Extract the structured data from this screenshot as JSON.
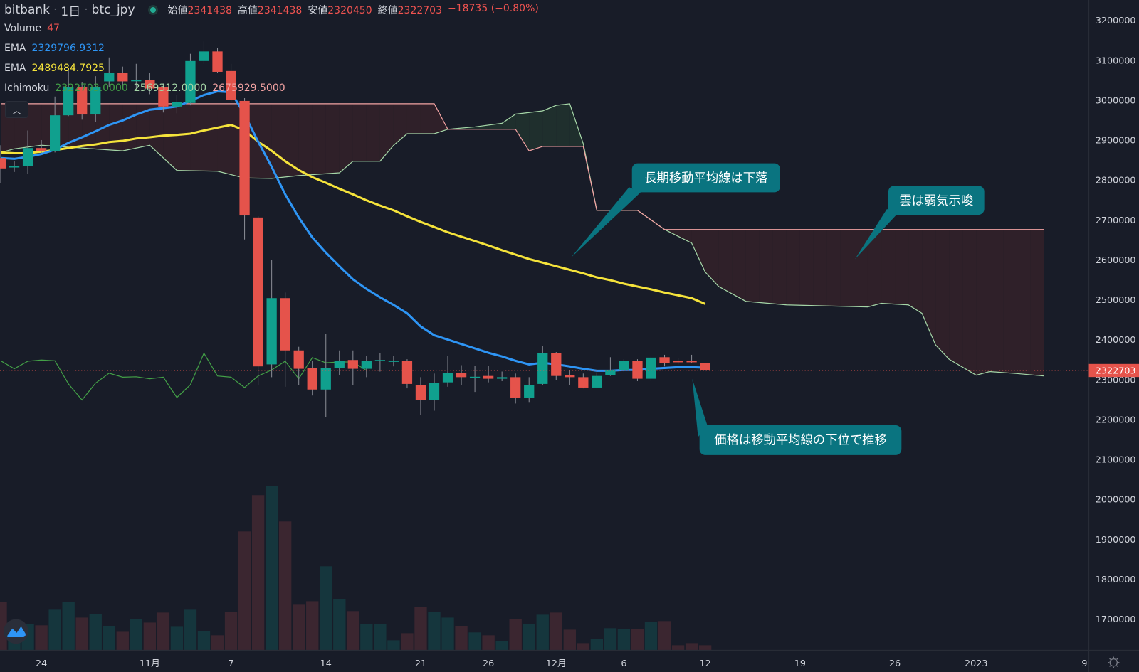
{
  "header": {
    "exchange": "bitbank",
    "interval": "1日",
    "symbol": "btc_jpy",
    "open_label": "始値",
    "open": "2341438",
    "high_label": "高値",
    "high": "2341438",
    "low_label": "安値",
    "low": "2320450",
    "close_label": "終値",
    "close": "2322703",
    "change": "−18735 (−0.80%)"
  },
  "legend": {
    "volume_label": "Volume",
    "volume_value": "47",
    "ema_short_label": "EMA",
    "ema_short_value": "2329796.9312",
    "ema_long_label": "EMA",
    "ema_long_value": "2489484.7925",
    "ichimoku_label": "Ichimoku",
    "ichimoku_lagging": "2322703.0000",
    "ichimoku_span_a": "2569312.0000",
    "ichimoku_span_b": "2675929.5000"
  },
  "collapse_icon": "chevron-up-icon",
  "annotations": [
    {
      "text": "長期移動平均線は下落"
    },
    {
      "text": "雲は弱気示唆"
    },
    {
      "text": "価格は移動平均線の下位で推移"
    }
  ],
  "colors": {
    "background": "#181c28",
    "up": "#10a08e",
    "down": "#e5534b",
    "volume_up": "#15363d",
    "volume_down": "#3b2630",
    "ema_short": "#2e95f5",
    "ema_long": "#f5e33b",
    "span_a": "#a5d6a7",
    "span_b": "#f4a3a3",
    "lagging": "#43a047",
    "cloud_bear": "#2f2029",
    "cloud_bull": "#1f2f2d",
    "callout": "#0a7480"
  },
  "chart_data": {
    "type": "candlestick",
    "title": "",
    "ylim": [
      1650000,
      3230000
    ],
    "y_scale": "linear",
    "grid": false,
    "price_ticks": [
      "3200000",
      "3100000",
      "3000000",
      "2900000",
      "2800000",
      "2700000",
      "2600000",
      "2500000",
      "2400000",
      "2300000",
      "2200000",
      "2100000",
      "2000000",
      "1900000",
      "1800000",
      "1700000"
    ],
    "last_price": "2322703",
    "date_ticks": [
      {
        "label": "24",
        "date": "2022-10-24"
      },
      {
        "label": "11月",
        "date": "2022-11-01"
      },
      {
        "label": "7",
        "date": "2022-11-07"
      },
      {
        "label": "14",
        "date": "2022-11-14"
      },
      {
        "label": "21",
        "date": "2022-11-21"
      },
      {
        "label": "26",
        "date": "2022-11-26"
      },
      {
        "label": "12月",
        "date": "2022-12-01"
      },
      {
        "label": "6",
        "date": "2022-12-06"
      },
      {
        "label": "12",
        "date": "2022-12-12"
      },
      {
        "label": "19",
        "date": "2022-12-19"
      },
      {
        "label": "26",
        "date": "2022-12-26"
      },
      {
        "label": "2023",
        "date": "2023-01-01"
      },
      {
        "label": "9",
        "date": "2023-01-09"
      }
    ],
    "candle_columns": [
      "date",
      "open",
      "high",
      "low",
      "close",
      "volume"
    ],
    "candles": [
      [
        "2022-10-21",
        2855000,
        2887000,
        2793000,
        2829000,
        456
      ],
      [
        "2022-10-22",
        2833000,
        2847000,
        2820000,
        2834000,
        268
      ],
      [
        "2022-10-23",
        2835000,
        2924000,
        2816000,
        2880000,
        248
      ],
      [
        "2022-10-24",
        2880000,
        2900000,
        2869000,
        2873000,
        235
      ],
      [
        "2022-10-25",
        2873000,
        3009000,
        2869000,
        2962000,
        382
      ],
      [
        "2022-10-26",
        2962000,
        3078000,
        2960000,
        3033000,
        456
      ],
      [
        "2022-10-27",
        3033000,
        3045000,
        2951000,
        2964000,
        308
      ],
      [
        "2022-10-28",
        2964000,
        3060000,
        2945000,
        3033000,
        342
      ],
      [
        "2022-10-29",
        3047000,
        3107000,
        3033000,
        3069000,
        228
      ],
      [
        "2022-10-30",
        3069000,
        3084000,
        3036000,
        3047000,
        174
      ],
      [
        "2022-10-31",
        3049000,
        3091000,
        3029000,
        3050000,
        295
      ],
      [
        "2022-11-01",
        3051000,
        3069000,
        3015000,
        3029000,
        261
      ],
      [
        "2022-11-02",
        3033000,
        3042000,
        2969000,
        2984000,
        355
      ],
      [
        "2022-11-03",
        2984000,
        3013000,
        2967000,
        2995000,
        221
      ],
      [
        "2022-11-04",
        2993000,
        3116000,
        2987000,
        3098000,
        382
      ],
      [
        "2022-11-05",
        3098000,
        3147000,
        3091000,
        3122000,
        181
      ],
      [
        "2022-11-06",
        3122000,
        3131000,
        3069000,
        3071000,
        141
      ],
      [
        "2022-11-07",
        3073000,
        3091000,
        2996000,
        3000000,
        362
      ],
      [
        "2022-11-08",
        2998000,
        3005000,
        2651000,
        2711000,
        1119
      ],
      [
        "2022-11-09",
        2706000,
        2709000,
        2287000,
        2333000,
        1461
      ],
      [
        "2022-11-10",
        2338000,
        2600000,
        2306000,
        2504000,
        1548
      ],
      [
        "2022-11-11",
        2504000,
        2518000,
        2282000,
        2373000,
        1213
      ],
      [
        "2022-11-12",
        2373000,
        2382000,
        2287000,
        2327000,
        429
      ],
      [
        "2022-11-13",
        2329000,
        2346000,
        2260000,
        2275000,
        462
      ],
      [
        "2022-11-14",
        2275000,
        2415000,
        2206000,
        2329000,
        791
      ],
      [
        "2022-11-15",
        2329000,
        2373000,
        2311000,
        2347000,
        482
      ],
      [
        "2022-11-16",
        2349000,
        2373000,
        2287000,
        2327000,
        369
      ],
      [
        "2022-11-17",
        2327000,
        2360000,
        2306000,
        2346000,
        248
      ],
      [
        "2022-11-18",
        2347000,
        2366000,
        2320000,
        2349000,
        248
      ],
      [
        "2022-11-19",
        2347000,
        2360000,
        2333000,
        2347000,
        94
      ],
      [
        "2022-11-20",
        2347000,
        2351000,
        2278000,
        2289000,
        161
      ],
      [
        "2022-11-21",
        2286000,
        2306000,
        2211000,
        2249000,
        409
      ],
      [
        "2022-11-22",
        2249000,
        2315000,
        2222000,
        2291000,
        362
      ],
      [
        "2022-11-23",
        2293000,
        2360000,
        2282000,
        2316000,
        308
      ],
      [
        "2022-11-24",
        2316000,
        2336000,
        2287000,
        2306000,
        228
      ],
      [
        "2022-11-25",
        2307000,
        2335000,
        2269000,
        2307000,
        168
      ],
      [
        "2022-11-26",
        2309000,
        2335000,
        2293000,
        2302000,
        141
      ],
      [
        "2022-11-27",
        2302000,
        2320000,
        2296000,
        2306000,
        87
      ],
      [
        "2022-11-28",
        2306000,
        2315000,
        2240000,
        2255000,
        295
      ],
      [
        "2022-11-29",
        2255000,
        2306000,
        2242000,
        2287000,
        248
      ],
      [
        "2022-11-30",
        2289000,
        2384000,
        2286000,
        2366000,
        335
      ],
      [
        "2022-12-01",
        2366000,
        2369000,
        2298000,
        2309000,
        355
      ],
      [
        "2022-12-02",
        2311000,
        2324000,
        2287000,
        2306000,
        194
      ],
      [
        "2022-12-03",
        2306000,
        2315000,
        2278000,
        2280000,
        67
      ],
      [
        "2022-12-04",
        2280000,
        2318000,
        2278000,
        2309000,
        107
      ],
      [
        "2022-12-05",
        2311000,
        2356000,
        2309000,
        2324000,
        208
      ],
      [
        "2022-12-06",
        2324000,
        2351000,
        2320000,
        2346000,
        201
      ],
      [
        "2022-12-07",
        2346000,
        2351000,
        2296000,
        2302000,
        201
      ],
      [
        "2022-12-08",
        2302000,
        2360000,
        2296000,
        2355000,
        268
      ],
      [
        "2022-12-09",
        2356000,
        2362000,
        2333000,
        2342000,
        275
      ],
      [
        "2022-12-10",
        2346000,
        2353000,
        2338000,
        2344000,
        47
      ],
      [
        "2022-12-11",
        2346000,
        2362000,
        2342000,
        2344000,
        67
      ],
      [
        "2022-12-12",
        2341438,
        2341438,
        2320450,
        2322703,
        47
      ]
    ],
    "ema_short": [
      2855000,
      2853000,
      2858000,
      2865000,
      2876000,
      2893000,
      2907000,
      2922000,
      2938000,
      2949000,
      2964000,
      2976000,
      2980000,
      2984000,
      2998000,
      3013000,
      3022000,
      3020000,
      2964000,
      2896000,
      2833000,
      2764000,
      2706000,
      2656000,
      2618000,
      2584000,
      2551000,
      2527000,
      2506000,
      2487000,
      2466000,
      2433000,
      2411000,
      2400000,
      2389000,
      2378000,
      2367000,
      2358000,
      2347000,
      2338000,
      2342000,
      2338000,
      2333000,
      2327000,
      2322000,
      2322000,
      2324000,
      2324000,
      2327000,
      2329000,
      2331000,
      2331000,
      2329797
    ],
    "ema_long": [
      2869000,
      2867000,
      2867000,
      2871000,
      2875000,
      2880000,
      2885000,
      2889000,
      2895000,
      2898000,
      2904000,
      2907000,
      2911000,
      2913000,
      2916000,
      2924000,
      2931000,
      2938000,
      2924000,
      2896000,
      2873000,
      2847000,
      2825000,
      2807000,
      2793000,
      2778000,
      2764000,
      2749000,
      2736000,
      2724000,
      2709000,
      2695000,
      2682000,
      2669000,
      2658000,
      2647000,
      2636000,
      2624000,
      2613000,
      2602000,
      2593000,
      2584000,
      2575000,
      2566000,
      2556000,
      2549000,
      2540000,
      2533000,
      2526000,
      2518000,
      2511000,
      2504000,
      2489485
    ],
    "ichimoku_span_a": [
      [
        "2022-10-21",
        2869000
      ],
      [
        "2022-10-22",
        2878000
      ],
      [
        "2022-10-24",
        2887000
      ],
      [
        "2022-10-30",
        2873000
      ],
      [
        "2022-11-01",
        2887000
      ],
      [
        "2022-11-03",
        2824000
      ],
      [
        "2022-11-06",
        2822000
      ],
      [
        "2022-11-08",
        2805000
      ],
      [
        "2022-11-10",
        2804000
      ],
      [
        "2022-11-12",
        2811000
      ],
      [
        "2022-11-15",
        2818000
      ],
      [
        "2022-11-16",
        2847000
      ],
      [
        "2022-11-18",
        2847000
      ],
      [
        "2022-11-19",
        2887000
      ],
      [
        "2022-11-20",
        2916000
      ],
      [
        "2022-11-22",
        2916000
      ],
      [
        "2022-11-23",
        2927000
      ],
      [
        "2022-11-25",
        2933000
      ],
      [
        "2022-11-27",
        2942000
      ],
      [
        "2022-11-28",
        2965000
      ],
      [
        "2022-11-30",
        2973000
      ],
      [
        "2022-12-01",
        2987000
      ],
      [
        "2022-12-02",
        2991000
      ],
      [
        "2022-12-03",
        2891000
      ],
      [
        "2022-12-04",
        2724000
      ],
      [
        "2022-12-07",
        2724000
      ],
      [
        "2022-12-09",
        2676000
      ],
      [
        "2022-12-11",
        2642000
      ],
      [
        "2022-12-12",
        2569312
      ],
      [
        "2022-12-13",
        2533000
      ],
      [
        "2022-12-15",
        2496000
      ],
      [
        "2022-12-18",
        2487000
      ],
      [
        "2022-12-24",
        2482000
      ],
      [
        "2022-12-25",
        2491000
      ],
      [
        "2022-12-27",
        2487000
      ],
      [
        "2022-12-28",
        2466000
      ],
      [
        "2022-12-29",
        2387000
      ],
      [
        "2022-12-30",
        2351000
      ],
      [
        "2023-01-01",
        2311000
      ],
      [
        "2023-01-02",
        2320000
      ],
      [
        "2023-01-04",
        2315000
      ],
      [
        "2023-01-06",
        2309000
      ]
    ],
    "ichimoku_span_b": [
      [
        "2022-10-21",
        2991000
      ],
      [
        "2022-11-22",
        2991000
      ],
      [
        "2022-11-23",
        2927000
      ],
      [
        "2022-11-28",
        2927000
      ],
      [
        "2022-11-29",
        2873000
      ],
      [
        "2022-11-30",
        2884000
      ],
      [
        "2022-12-03",
        2884000
      ],
      [
        "2022-12-04",
        2724000
      ],
      [
        "2022-12-07",
        2724000
      ],
      [
        "2022-12-09",
        2675929.5
      ],
      [
        "2023-01-06",
        2675929.5
      ]
    ],
    "ichimoku_lagging_shift": 25
  }
}
